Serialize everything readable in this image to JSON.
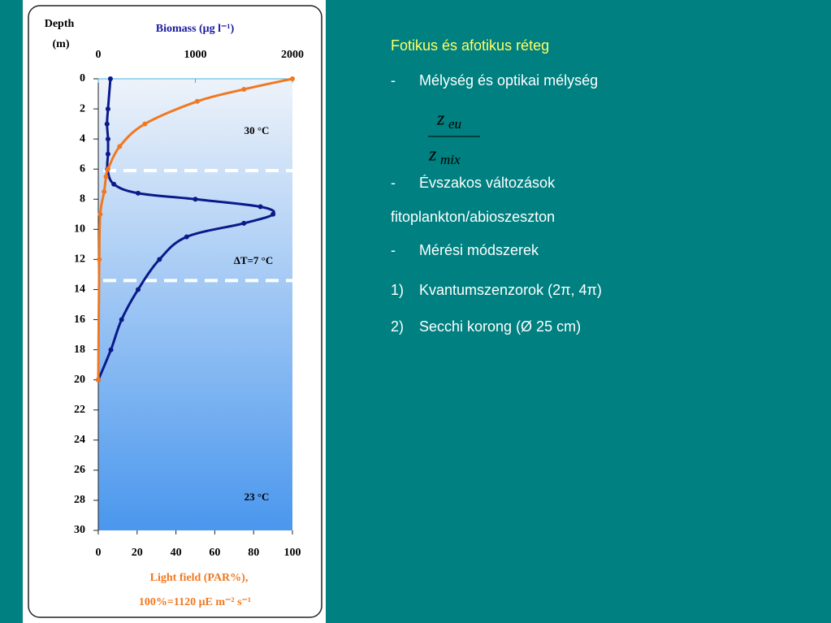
{
  "chart_data": {
    "type": "line",
    "y_title_1": "Depth",
    "y_title_2": "(m)",
    "x2_title": "Biomass (μg l⁻¹)",
    "x_title_1": "Light field (PAR%),",
    "x_title_2": "100%=1120 μE m⁻² s⁻¹",
    "ylim": [
      0,
      30
    ],
    "yticks": [
      0,
      2,
      4,
      6,
      8,
      10,
      12,
      14,
      16,
      18,
      20,
      22,
      24,
      26,
      28,
      30
    ],
    "xlim": [
      0,
      100
    ],
    "xticks": [
      0,
      20,
      40,
      60,
      80,
      100
    ],
    "x2lim": [
      0,
      2000
    ],
    "x2ticks": [
      0,
      1000,
      2000
    ],
    "series": [
      {
        "color": "#0a1a8a",
        "axis": "x2",
        "depth": [
          0,
          2,
          3,
          4,
          5,
          6,
          7,
          7.6,
          8,
          8.5,
          9,
          9.6,
          10.5,
          12,
          14,
          16,
          18,
          20
        ],
        "values": [
          125,
          100,
          90,
          100,
          100,
          95,
          160,
          410,
          1000,
          1670,
          1800,
          1500,
          910,
          630,
          410,
          240,
          130,
          0
        ]
      },
      {
        "color": "#f07820",
        "axis": "x",
        "depth": [
          0,
          0.7,
          1.5,
          3,
          4.5,
          6,
          6.5,
          7.5,
          9,
          12,
          20
        ],
        "values": [
          100,
          75,
          51,
          24,
          11,
          5,
          4,
          3,
          1,
          0.5,
          0
        ]
      }
    ],
    "mixed_layer_bounds": [
      6.1,
      13.4
    ],
    "annotations": [
      "30 °C",
      "ΔT=7 °C",
      "23 °C"
    ]
  },
  "slide": {
    "title": "Fotikus és afotikus réteg",
    "items": [
      {
        "marker": "-",
        "text": "Mélység és optikai mélység"
      }
    ],
    "formula": {
      "numerator": "z",
      "numerator_sub": "eu",
      "denominator": "z",
      "denominator_sub": "mix"
    },
    "items2": [
      {
        "marker": "-",
        "text": "Évszakos változások"
      }
    ],
    "plain": "fitoplankton/abioszeszton",
    "items3": [
      {
        "marker": "-",
        "text": "Mérési módszerek"
      },
      {
        "marker": "1)",
        "text": "Kvantumszenzorok (2π, 4π)"
      },
      {
        "marker": "2)",
        "text": "Secchi korong (Ø 25 cm)"
      }
    ]
  }
}
